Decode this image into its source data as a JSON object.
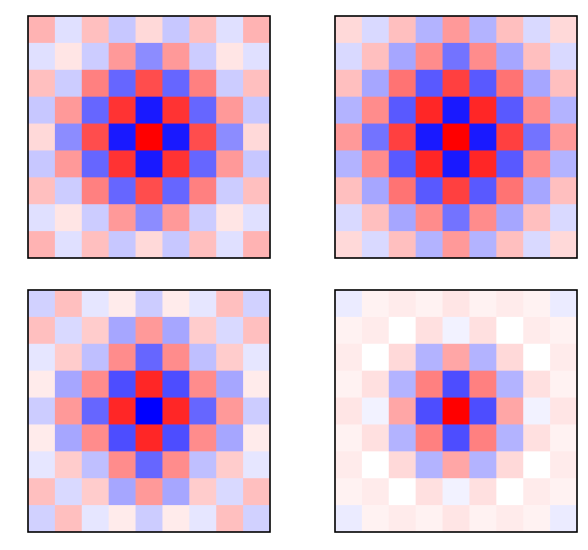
{
  "chart_data": [
    {
      "type": "heatmap",
      "colormap": "bwr",
      "vmin": -1,
      "vmax": 1,
      "rows": 9,
      "cols": 9,
      "grid": false,
      "values": [
        [
          0.3,
          -0.12,
          0.25,
          -0.22,
          0.15,
          -0.22,
          0.25,
          -0.12,
          0.3
        ],
        [
          -0.12,
          0.1,
          -0.2,
          0.4,
          -0.45,
          0.4,
          -0.2,
          0.1,
          -0.12
        ],
        [
          0.25,
          -0.2,
          0.5,
          -0.6,
          0.7,
          -0.6,
          0.5,
          -0.2,
          0.25
        ],
        [
          -0.22,
          0.4,
          -0.6,
          0.8,
          -0.9,
          0.8,
          -0.6,
          0.4,
          -0.22
        ],
        [
          0.15,
          -0.45,
          0.7,
          -0.9,
          1.0,
          -0.9,
          0.7,
          -0.45,
          0.15
        ],
        [
          -0.22,
          0.4,
          -0.6,
          0.8,
          -0.9,
          0.8,
          -0.6,
          0.4,
          -0.22
        ],
        [
          0.25,
          -0.2,
          0.5,
          -0.6,
          0.7,
          -0.6,
          0.5,
          -0.2,
          0.25
        ],
        [
          -0.12,
          0.1,
          -0.2,
          0.4,
          -0.45,
          0.4,
          -0.2,
          0.1,
          -0.12
        ],
        [
          0.3,
          -0.12,
          0.25,
          -0.22,
          0.15,
          -0.22,
          0.25,
          -0.12,
          0.3
        ]
      ]
    },
    {
      "type": "heatmap",
      "colormap": "bwr",
      "vmin": -1,
      "vmax": 1,
      "rows": 9,
      "cols": 9,
      "grid": false,
      "values": [
        [
          0.15,
          -0.15,
          0.25,
          -0.3,
          0.4,
          -0.3,
          0.25,
          -0.15,
          0.15
        ],
        [
          -0.15,
          0.25,
          -0.35,
          0.45,
          -0.55,
          0.45,
          -0.35,
          0.25,
          -0.15
        ],
        [
          0.25,
          -0.35,
          0.55,
          -0.65,
          0.75,
          -0.65,
          0.55,
          -0.35,
          0.25
        ],
        [
          -0.3,
          0.45,
          -0.65,
          0.85,
          -0.9,
          0.85,
          -0.65,
          0.45,
          -0.3
        ],
        [
          0.4,
          -0.55,
          0.75,
          -0.9,
          1.0,
          -0.9,
          0.75,
          -0.55,
          0.4
        ],
        [
          -0.3,
          0.45,
          -0.65,
          0.85,
          -0.9,
          0.85,
          -0.65,
          0.45,
          -0.3
        ],
        [
          0.25,
          -0.35,
          0.55,
          -0.65,
          0.75,
          -0.65,
          0.55,
          -0.35,
          0.25
        ],
        [
          -0.15,
          0.25,
          -0.35,
          0.45,
          -0.55,
          0.45,
          -0.35,
          0.25,
          -0.15
        ],
        [
          0.15,
          -0.15,
          0.25,
          -0.3,
          0.4,
          -0.3,
          0.25,
          -0.15,
          0.15
        ]
      ]
    },
    {
      "type": "heatmap",
      "colormap": "bwr",
      "vmin": -1,
      "vmax": 1,
      "rows": 9,
      "cols": 9,
      "grid": false,
      "values": [
        [
          -0.18,
          0.25,
          -0.1,
          0.08,
          -0.2,
          0.08,
          -0.1,
          0.25,
          -0.18
        ],
        [
          0.25,
          -0.15,
          0.2,
          -0.35,
          0.4,
          -0.35,
          0.2,
          -0.15,
          0.25
        ],
        [
          -0.1,
          0.2,
          -0.25,
          0.45,
          -0.6,
          0.45,
          -0.25,
          0.2,
          -0.1
        ],
        [
          0.08,
          -0.35,
          0.45,
          -0.7,
          0.85,
          -0.7,
          0.45,
          -0.35,
          0.08
        ],
        [
          -0.2,
          0.4,
          -0.6,
          0.85,
          -1.0,
          0.85,
          -0.6,
          0.4,
          -0.2
        ],
        [
          0.08,
          -0.35,
          0.45,
          -0.7,
          0.85,
          -0.7,
          0.45,
          -0.35,
          0.08
        ],
        [
          -0.1,
          0.2,
          -0.25,
          0.45,
          -0.6,
          0.45,
          -0.25,
          0.2,
          -0.1
        ],
        [
          0.25,
          -0.15,
          0.2,
          -0.35,
          0.4,
          -0.35,
          0.2,
          -0.15,
          0.25
        ],
        [
          -0.18,
          0.25,
          -0.1,
          0.08,
          -0.2,
          0.08,
          -0.1,
          0.25,
          -0.18
        ]
      ]
    },
    {
      "type": "heatmap",
      "colormap": "bwr",
      "vmin": -1,
      "vmax": 1,
      "rows": 9,
      "cols": 9,
      "grid": false,
      "values": [
        [
          -0.08,
          0.05,
          0.08,
          0.05,
          0.1,
          0.05,
          0.08,
          0.05,
          -0.08
        ],
        [
          0.05,
          0.08,
          0.0,
          0.12,
          -0.05,
          0.12,
          0.0,
          0.08,
          0.05
        ],
        [
          0.08,
          0.0,
          0.15,
          -0.3,
          0.35,
          -0.3,
          0.15,
          0.0,
          0.08
        ],
        [
          0.05,
          0.12,
          -0.3,
          0.5,
          -0.7,
          0.5,
          -0.3,
          0.12,
          0.05
        ],
        [
          0.1,
          -0.05,
          0.35,
          -0.7,
          1.0,
          -0.7,
          0.35,
          -0.05,
          0.1
        ],
        [
          0.05,
          0.12,
          -0.3,
          0.5,
          -0.7,
          0.5,
          -0.3,
          0.12,
          0.05
        ],
        [
          0.08,
          0.0,
          0.15,
          -0.3,
          0.35,
          -0.3,
          0.15,
          0.0,
          0.08
        ],
        [
          0.05,
          0.08,
          0.0,
          0.12,
          -0.05,
          0.12,
          0.0,
          0.08,
          0.05
        ],
        [
          -0.08,
          0.05,
          0.08,
          0.05,
          0.1,
          0.05,
          0.08,
          0.05,
          -0.08
        ]
      ]
    }
  ]
}
